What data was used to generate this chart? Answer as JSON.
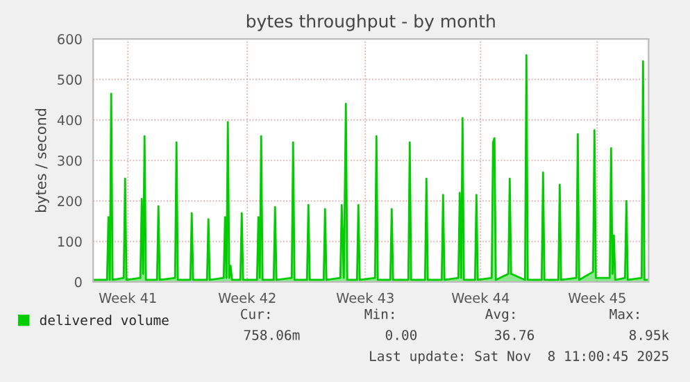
{
  "chart_data": {
    "type": "area",
    "title": "bytes throughput - by month",
    "ylabel": "bytes / second",
    "xlim": [
      "2025-10-06T03:00",
      "2025-11-08T11:00"
    ],
    "xticks": [
      {
        "value": "2025-10-08T05:00",
        "label": "Week 41"
      },
      {
        "value": "2025-10-15T09:00",
        "label": "Week 42"
      },
      {
        "value": "2025-10-22T11:00",
        "label": "Week 43"
      },
      {
        "value": "2025-10-29T09:00",
        "label": "Week 44"
      },
      {
        "value": "2025-11-05T09:00",
        "label": "Week 45"
      }
    ],
    "ylim": [
      0,
      600
    ],
    "yticks": [
      0,
      100,
      200,
      300,
      400,
      500,
      600
    ],
    "grid": true,
    "legend": "bottom",
    "series": [
      {
        "name": "delivered volume",
        "color": "#00cc00",
        "x": [
          "2025-10-06T03:00",
          "2025-10-06T23:00",
          "2025-10-07T01:00",
          "2025-10-07T03:00",
          "2025-10-07T05:00",
          "2025-10-07T07:00",
          "2025-10-07T23:00",
          "2025-10-08T01:00",
          "2025-10-08T03:00",
          "2025-10-08T23:00",
          "2025-10-09T01:00",
          "2025-10-09T03:00",
          "2025-10-09T05:00",
          "2025-10-09T07:00",
          "2025-10-09T23:00",
          "2025-10-10T01:00",
          "2025-10-10T03:00",
          "2025-10-11T01:00",
          "2025-10-11T03:00",
          "2025-10-11T05:00",
          "2025-10-11T23:00",
          "2025-10-12T01:00",
          "2025-10-12T03:00",
          "2025-10-12T23:00",
          "2025-10-13T01:00",
          "2025-10-13T03:00",
          "2025-10-13T23:00",
          "2025-10-14T01:00",
          "2025-10-14T03:00",
          "2025-10-14T05:00",
          "2025-10-14T07:00",
          "2025-10-14T09:00",
          "2025-10-14T11:00",
          "2025-10-14T23:00",
          "2025-10-15T01:00",
          "2025-10-15T03:00",
          "2025-10-15T23:00",
          "2025-10-16T01:00",
          "2025-10-16T03:00",
          "2025-10-16T05:00",
          "2025-10-16T07:00",
          "2025-10-16T23:00",
          "2025-10-17T01:00",
          "2025-10-17T03:00",
          "2025-10-18T01:00",
          "2025-10-18T03:00",
          "2025-10-18T05:00",
          "2025-10-18T23:00",
          "2025-10-19T01:00",
          "2025-10-19T03:00",
          "2025-10-19T23:00",
          "2025-10-20T01:00",
          "2025-10-20T03:00",
          "2025-10-20T23:00",
          "2025-10-21T01:00",
          "2025-10-21T04:00",
          "2025-10-21T07:00",
          "2025-10-21T09:00",
          "2025-10-21T23:00",
          "2025-10-22T01:00",
          "2025-10-22T03:00",
          "2025-10-23T01:00",
          "2025-10-23T03:00",
          "2025-10-23T05:00",
          "2025-10-23T23:00",
          "2025-10-24T01:00",
          "2025-10-24T03:00",
          "2025-10-25T01:00",
          "2025-10-25T03:00",
          "2025-10-25T05:00",
          "2025-10-26T01:00",
          "2025-10-26T03:00",
          "2025-10-26T05:00",
          "2025-10-27T01:00",
          "2025-10-27T03:00",
          "2025-10-27T05:00",
          "2025-10-28T01:00",
          "2025-10-28T03:00",
          "2025-10-28T05:00",
          "2025-10-28T07:00",
          "2025-10-28T09:00",
          "2025-10-29T01:00",
          "2025-10-29T03:00",
          "2025-10-29T05:00",
          "2025-10-30T01:00",
          "2025-10-30T03:00",
          "2025-10-30T05:00",
          "2025-10-30T07:00",
          "2025-10-31T01:00",
          "2025-10-31T03:00",
          "2025-10-31T05:00",
          "2025-11-01T01:00",
          "2025-11-01T03:00",
          "2025-11-01T05:00",
          "2025-11-02T01:00",
          "2025-11-02T03:00",
          "2025-11-02T05:00",
          "2025-11-03T01:00",
          "2025-11-03T03:00",
          "2025-11-03T05:00",
          "2025-11-04T03:00",
          "2025-11-04T05:00",
          "2025-11-04T07:00",
          "2025-11-05T03:00",
          "2025-11-05T05:00",
          "2025-11-05T07:00",
          "2025-11-06T03:00",
          "2025-11-06T05:00",
          "2025-11-06T07:00",
          "2025-11-06T09:00",
          "2025-11-06T11:00",
          "2025-11-07T01:00",
          "2025-11-07T03:00",
          "2025-11-07T05:00",
          "2025-11-08T01:00",
          "2025-11-08T03:00",
          "2025-11-08T05:00",
          "2025-11-08T11:00"
        ],
        "values": [
          5,
          5,
          160,
          5,
          465,
          5,
          10,
          255,
          5,
          10,
          205,
          20,
          360,
          5,
          5,
          187,
          5,
          10,
          345,
          5,
          5,
          170,
          5,
          5,
          155,
          5,
          10,
          160,
          10,
          395,
          10,
          40,
          5,
          5,
          170,
          5,
          5,
          160,
          10,
          360,
          5,
          5,
          185,
          5,
          10,
          345,
          5,
          5,
          190,
          5,
          5,
          180,
          5,
          10,
          190,
          10,
          440,
          5,
          5,
          190,
          5,
          10,
          360,
          5,
          5,
          180,
          5,
          5,
          345,
          5,
          5,
          255,
          5,
          5,
          215,
          5,
          10,
          220,
          10,
          405,
          5,
          5,
          215,
          5,
          10,
          345,
          355,
          5,
          20,
          255,
          20,
          5,
          560,
          5,
          5,
          270,
          5,
          5,
          240,
          5,
          10,
          365,
          5,
          25,
          375,
          10,
          10,
          330,
          20,
          115,
          5,
          10,
          200,
          5,
          10,
          545,
          5,
          5
        ]
      }
    ],
    "annotations": [
      "Cur:",
      "Min:",
      "Avg:",
      "Max:",
      "758.06m",
      "0.00",
      "36.76",
      "8.95k",
      "Last update: Sat Nov  8 11:00:45 2025"
    ]
  }
}
